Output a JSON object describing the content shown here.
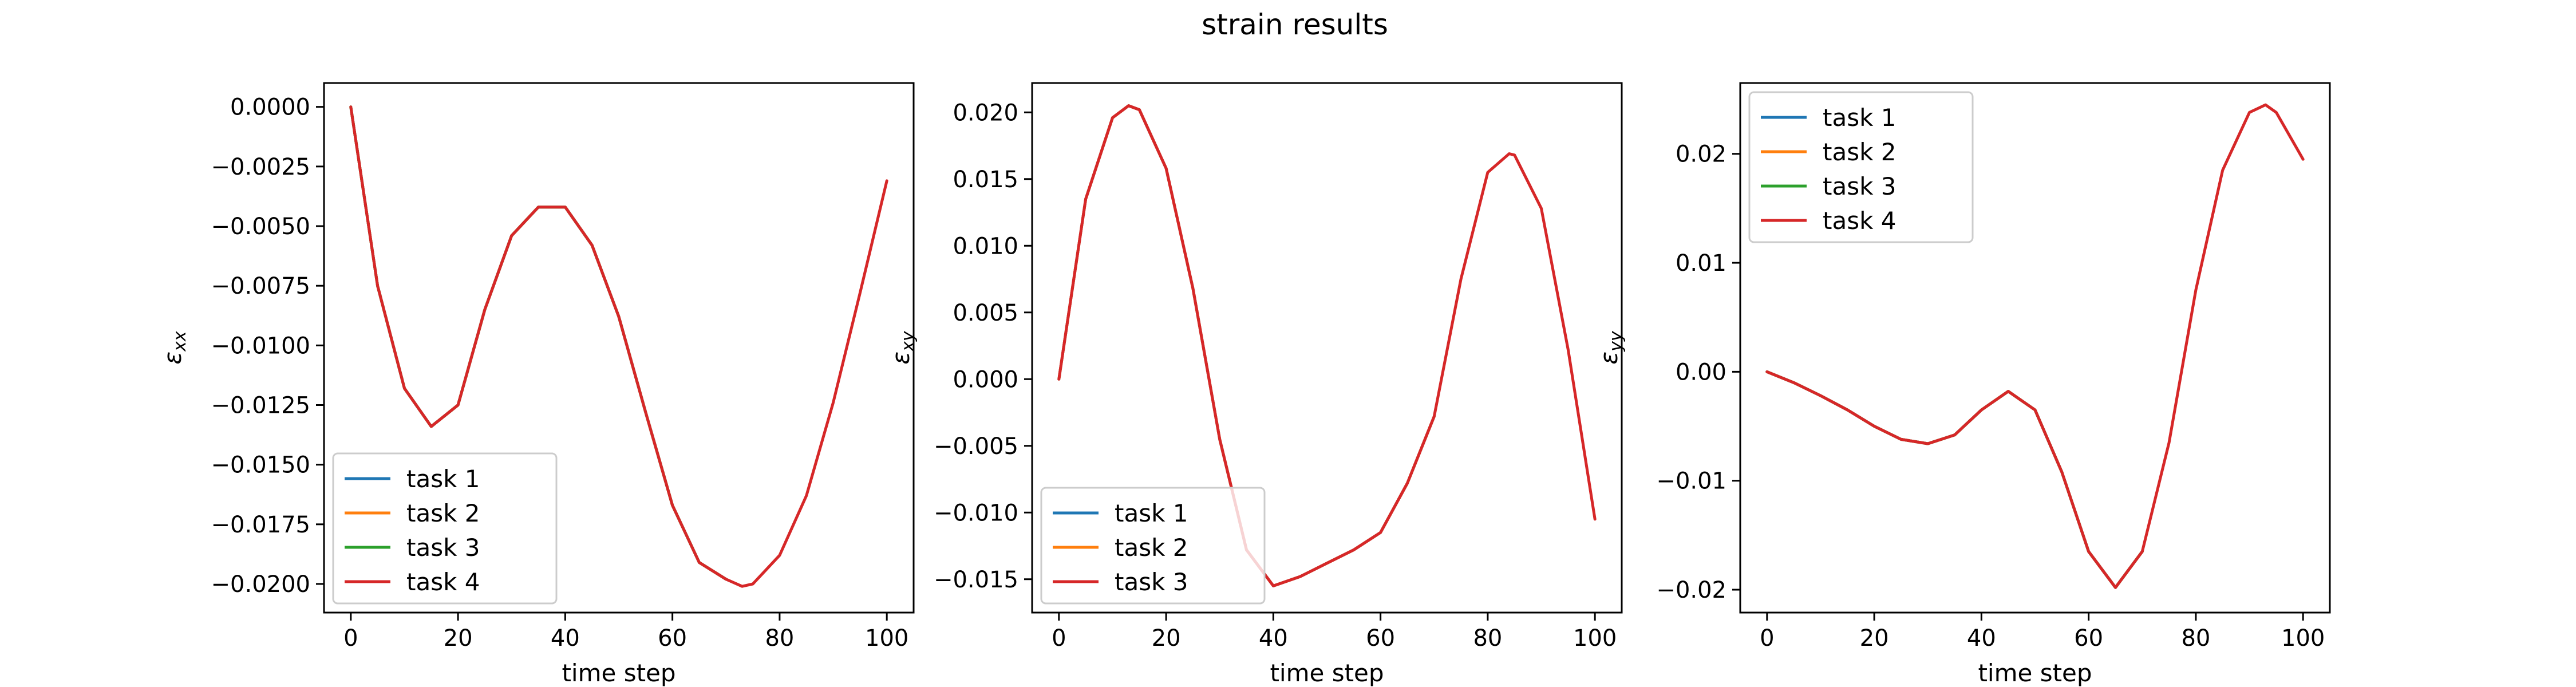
{
  "figure": {
    "suptitle": "strain results"
  },
  "chart_data": [
    {
      "type": "line",
      "title": "",
      "xlabel": "time step",
      "ylabel": "εxx",
      "xlim": [
        -5,
        105
      ],
      "ylim": [
        -0.0212,
        0.001
      ],
      "xticks": [
        0,
        20,
        40,
        60,
        80,
        100
      ],
      "xtick_labels": [
        "0",
        "20",
        "40",
        "60",
        "80",
        "100"
      ],
      "yticks": [
        0.0,
        -0.0025,
        -0.005,
        -0.0075,
        -0.01,
        -0.0125,
        -0.015,
        -0.0175,
        -0.02
      ],
      "ytick_labels": [
        "0.0000",
        "−0.0025",
        "−0.0050",
        "−0.0075",
        "−0.0100",
        "−0.0125",
        "−0.0150",
        "−0.0175",
        "−0.0200"
      ],
      "legend_loc": "lower-left",
      "grid": false,
      "series": [
        {
          "name": "task 1",
          "color": "#1f77b4",
          "x": [
            0,
            5,
            10,
            15,
            20,
            25,
            30,
            35,
            40,
            45,
            50,
            55,
            60,
            65,
            70
          ],
          "y": [
            0.0,
            -0.0075,
            -0.0118,
            -0.0134,
            -0.0125,
            -0.0085,
            -0.0054,
            -0.0042,
            -0.0042,
            -0.0058,
            -0.0088,
            -0.0128,
            -0.0167,
            -0.0191,
            -0.0198
          ]
        },
        {
          "name": "task 2",
          "color": "#ff7f0e",
          "x": [
            0,
            5,
            10,
            15,
            20,
            25,
            30,
            35,
            40,
            45,
            50,
            55,
            60,
            65,
            70
          ],
          "y": [
            0.0,
            -0.0075,
            -0.0118,
            -0.0134,
            -0.0125,
            -0.0085,
            -0.0054,
            -0.0042,
            -0.0042,
            -0.0058,
            -0.0088,
            -0.0128,
            -0.0167,
            -0.0191,
            -0.0198
          ]
        },
        {
          "name": "task 3",
          "color": "#2ca02c",
          "x": [
            0,
            5,
            10,
            15,
            20,
            25,
            30,
            35,
            40,
            45,
            50,
            55,
            60,
            65,
            70
          ],
          "y": [
            0.0,
            -0.0075,
            -0.0118,
            -0.0134,
            -0.0125,
            -0.0085,
            -0.0054,
            -0.0042,
            -0.0042,
            -0.0058,
            -0.0088,
            -0.0128,
            -0.0167,
            -0.0191,
            -0.0198
          ]
        },
        {
          "name": "task 4",
          "color": "#d62728",
          "x": [
            0,
            5,
            10,
            15,
            20,
            25,
            30,
            35,
            40,
            45,
            50,
            55,
            60,
            65,
            70,
            73,
            75,
            80,
            85,
            90,
            95,
            100
          ],
          "y": [
            0.0,
            -0.0075,
            -0.0118,
            -0.0134,
            -0.0125,
            -0.0085,
            -0.0054,
            -0.0042,
            -0.0042,
            -0.0058,
            -0.0088,
            -0.0128,
            -0.0167,
            -0.0191,
            -0.0198,
            -0.0201,
            -0.02,
            -0.0188,
            -0.0163,
            -0.0124,
            -0.0078,
            -0.0031
          ]
        }
      ]
    },
    {
      "type": "line",
      "title": "",
      "xlabel": "time step",
      "ylabel": "εxy",
      "xlim": [
        -5,
        105
      ],
      "ylim": [
        -0.0175,
        0.0222
      ],
      "xticks": [
        0,
        20,
        40,
        60,
        80,
        100
      ],
      "xtick_labels": [
        "0",
        "20",
        "40",
        "60",
        "80",
        "100"
      ],
      "yticks": [
        0.02,
        0.015,
        0.01,
        0.005,
        0.0,
        -0.005,
        -0.01,
        -0.015
      ],
      "ytick_labels": [
        "0.020",
        "0.015",
        "0.010",
        "0.005",
        "0.000",
        "−0.005",
        "−0.010",
        "−0.015"
      ],
      "legend_loc": "lower-left",
      "grid": false,
      "series": [
        {
          "name": "task 1",
          "color": "#1f77b4",
          "x": [
            0,
            5,
            10,
            13,
            15,
            20,
            25,
            30,
            35,
            40,
            45,
            50,
            55,
            60,
            65,
            70
          ],
          "y": [
            0.0,
            0.0135,
            0.0196,
            0.0205,
            0.0202,
            0.0158,
            0.0068,
            -0.0045,
            -0.0128,
            -0.0155,
            -0.0148,
            -0.0138,
            -0.0128,
            -0.0115,
            -0.0078,
            -0.0028
          ]
        },
        {
          "name": "task 2",
          "color": "#ff7f0e",
          "x": [
            0,
            5,
            10,
            13,
            15,
            20,
            25,
            30,
            35,
            40,
            45,
            50,
            55,
            60,
            65,
            70
          ],
          "y": [
            0.0,
            0.0135,
            0.0196,
            0.0205,
            0.0202,
            0.0158,
            0.0068,
            -0.0045,
            -0.0128,
            -0.0155,
            -0.0148,
            -0.0138,
            -0.0128,
            -0.0115,
            -0.0078,
            -0.0028
          ]
        },
        {
          "name": "task 3",
          "color": "#d62728",
          "x": [
            0,
            5,
            10,
            13,
            15,
            20,
            25,
            30,
            35,
            40,
            45,
            50,
            55,
            60,
            65,
            70,
            75,
            80,
            84,
            85,
            90,
            95,
            100
          ],
          "y": [
            0.0,
            0.0135,
            0.0196,
            0.0205,
            0.0202,
            0.0158,
            0.0068,
            -0.0045,
            -0.0128,
            -0.0155,
            -0.0148,
            -0.0138,
            -0.0128,
            -0.0115,
            -0.0078,
            -0.0028,
            0.0075,
            0.0155,
            0.0169,
            0.0168,
            0.0128,
            0.0022,
            -0.0105
          ]
        }
      ]
    },
    {
      "type": "line",
      "title": "",
      "xlabel": "time step",
      "ylabel": "εyy",
      "xlim": [
        -5,
        105
      ],
      "ylim": [
        -0.0221,
        0.0265
      ],
      "xticks": [
        0,
        20,
        40,
        60,
        80,
        100
      ],
      "xtick_labels": [
        "0",
        "20",
        "40",
        "60",
        "80",
        "100"
      ],
      "yticks": [
        0.02,
        0.01,
        0.0,
        -0.01,
        -0.02
      ],
      "ytick_labels": [
        "0.02",
        "0.01",
        "0.00",
        "−0.01",
        "−0.02"
      ],
      "legend_loc": "upper-left",
      "grid": false,
      "series": [
        {
          "name": "task 1",
          "color": "#1f77b4",
          "x": [
            0,
            5,
            10,
            15,
            20,
            25,
            30,
            35,
            40,
            45,
            50,
            55,
            60,
            65,
            70
          ],
          "y": [
            0.0,
            -0.001,
            -0.0022,
            -0.0035,
            -0.005,
            -0.0062,
            -0.0066,
            -0.0058,
            -0.0035,
            -0.0018,
            -0.0035,
            -0.0092,
            -0.0165,
            -0.0198,
            -0.0165
          ]
        },
        {
          "name": "task 2",
          "color": "#ff7f0e",
          "x": [
            0,
            5,
            10,
            15,
            20,
            25,
            30,
            35,
            40,
            45,
            50,
            55,
            60,
            65,
            70
          ],
          "y": [
            0.0,
            -0.001,
            -0.0022,
            -0.0035,
            -0.005,
            -0.0062,
            -0.0066,
            -0.0058,
            -0.0035,
            -0.0018,
            -0.0035,
            -0.0092,
            -0.0165,
            -0.0198,
            -0.0165
          ]
        },
        {
          "name": "task 3",
          "color": "#2ca02c",
          "x": [
            0,
            5,
            10,
            15,
            20,
            25,
            30,
            35,
            40,
            45,
            50,
            55,
            60,
            65,
            70
          ],
          "y": [
            0.0,
            -0.001,
            -0.0022,
            -0.0035,
            -0.005,
            -0.0062,
            -0.0066,
            -0.0058,
            -0.0035,
            -0.0018,
            -0.0035,
            -0.0092,
            -0.0165,
            -0.0198,
            -0.0165
          ]
        },
        {
          "name": "task 4",
          "color": "#d62728",
          "x": [
            0,
            5,
            10,
            15,
            20,
            25,
            30,
            35,
            40,
            45,
            50,
            55,
            60,
            65,
            70,
            75,
            80,
            85,
            90,
            93,
            95,
            100
          ],
          "y": [
            0.0,
            -0.001,
            -0.0022,
            -0.0035,
            -0.005,
            -0.0062,
            -0.0066,
            -0.0058,
            -0.0035,
            -0.0018,
            -0.0035,
            -0.0092,
            -0.0165,
            -0.0198,
            -0.0165,
            -0.0065,
            0.0075,
            0.0185,
            0.0238,
            0.0245,
            0.0238,
            0.0195
          ]
        }
      ]
    }
  ]
}
